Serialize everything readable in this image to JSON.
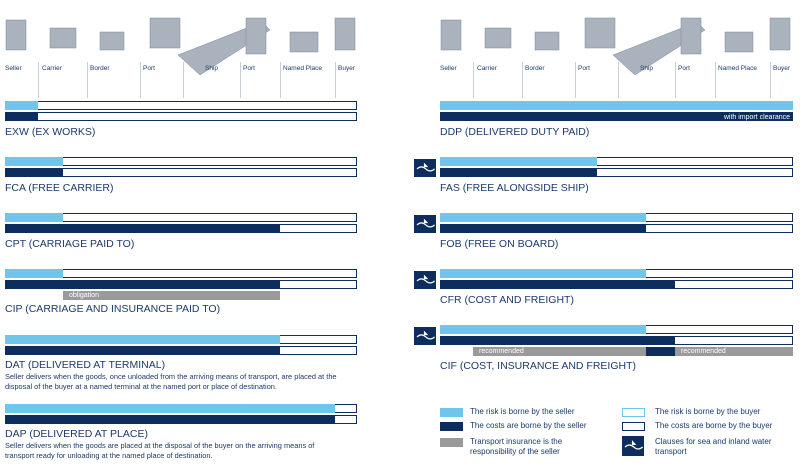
{
  "stages": [
    "Seller",
    "Carrier",
    "Border",
    "Port",
    "Ship",
    "Port",
    "Named Place",
    "Buyer"
  ],
  "terms_left": [
    {
      "name": "EXW (EX WORKS)"
    },
    {
      "name": "FCA (FREE CARRIER)"
    },
    {
      "name": "CPT (CARRIAGE PAID TO)"
    },
    {
      "name": "CIP (CARRIAGE AND INSURANCE PAID TO)",
      "notes": [
        "obligation"
      ]
    },
    {
      "name": "DAT (DELIVERED AT TERMINAL)",
      "description": "Seller delivers when the goods, once unloaded from the arriving means of transport, are placed at the disposal of the buyer at a named terminal at the named port or place of destination."
    },
    {
      "name": "DAP (DELIVERED AT PLACE)",
      "description": "Seller delivers when the goods are placed at the disposal of the buyer on the arriving means of transport ready for unloading at the named place of destination."
    }
  ],
  "terms_right": [
    {
      "name": "DDP (DELIVERED DUTY PAID)",
      "notes": [
        "with import clearance"
      ]
    },
    {
      "name": "FAS (FREE ALONGSIDE SHIP)"
    },
    {
      "name": "FOB (FREE ON BOARD)"
    },
    {
      "name": "CFR (COST AND FREIGHT)"
    },
    {
      "name": "CIF (COST, INSURANCE AND FREIGHT)",
      "notes": [
        "recommended",
        "recommended"
      ]
    }
  ],
  "legend": [
    "The risk is borne by the seller",
    "The risk is borne by the buyer",
    "The costs are borne by the seller",
    "The costs are borne by the buyer",
    "Transport insurance is the responsibility of the seller",
    "Clauses for sea and inland water transport"
  ]
}
